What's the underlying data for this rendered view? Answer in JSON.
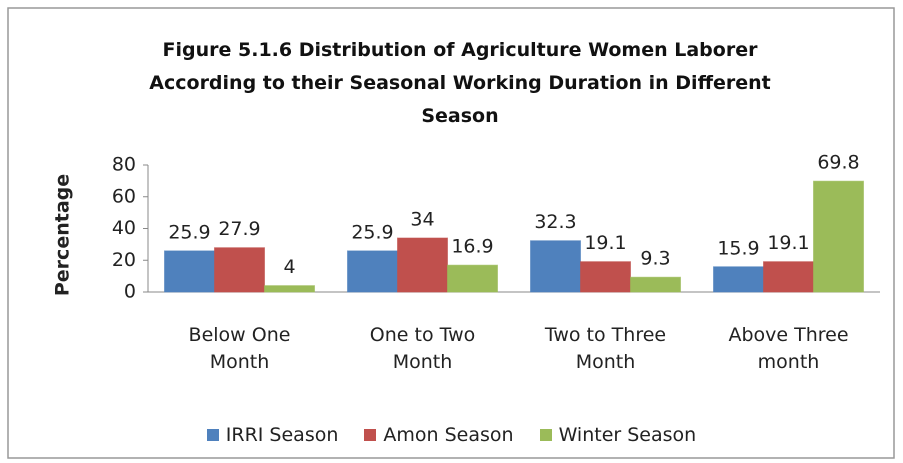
{
  "chart_data": {
    "type": "bar",
    "title": "Figure 5.1.6 Distribution of Agriculture Women Laborer According to their Seasonal Working Duration in Different Season",
    "ylabel": "Percentage",
    "categories": [
      "Below One Month",
      "One to Two Month",
      "Two to Three Month",
      "Above Three month"
    ],
    "series": [
      {
        "name": "IRRI Season",
        "color": "#4f81bd",
        "values": [
          25.9,
          25.9,
          32.3,
          15.9
        ]
      },
      {
        "name": "Amon Season",
        "color": "#c0504d",
        "values": [
          27.9,
          34,
          19.1,
          19.1
        ]
      },
      {
        "name": "Winter Season",
        "color": "#9bbb59",
        "values": [
          4,
          16.9,
          9.3,
          69.8
        ]
      }
    ],
    "ylim": [
      0,
      80
    ],
    "yticks": [
      0,
      20,
      40,
      60,
      80
    ],
    "grid": false,
    "legend": "bottom"
  }
}
